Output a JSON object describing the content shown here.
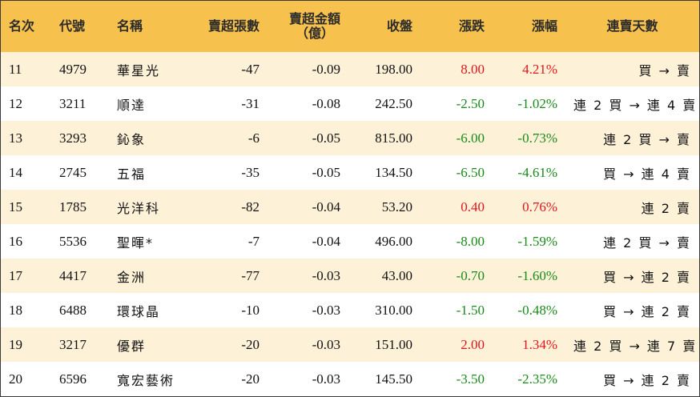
{
  "headers": {
    "rank": "名次",
    "code": "代號",
    "name": "名稱",
    "net_sell_lots": "賣超張數",
    "net_sell_amount_line1": "賣超金額",
    "net_sell_amount_line2": "（億）",
    "close": "收盤",
    "change": "漲跌",
    "change_pct": "漲幅",
    "consecutive_days": "連賣天數"
  },
  "rows": [
    {
      "rank": "11",
      "code": "4979",
      "name": "華星光",
      "lots": "-47",
      "amount": "-0.09",
      "close": "198.00",
      "change": "8.00",
      "pct": "4.21%",
      "trend": "up",
      "days": "買 → 賣"
    },
    {
      "rank": "12",
      "code": "3211",
      "name": "順達",
      "lots": "-31",
      "amount": "-0.08",
      "close": "242.50",
      "change": "-2.50",
      "pct": "-1.02%",
      "trend": "down",
      "days": "連 2 買 → 連 4 賣"
    },
    {
      "rank": "13",
      "code": "3293",
      "name": "鈊象",
      "lots": "-6",
      "amount": "-0.05",
      "close": "815.00",
      "change": "-6.00",
      "pct": "-0.73%",
      "trend": "down",
      "days": "連 2 買 → 賣"
    },
    {
      "rank": "14",
      "code": "2745",
      "name": "五福",
      "lots": "-35",
      "amount": "-0.05",
      "close": "134.50",
      "change": "-6.50",
      "pct": "-4.61%",
      "trend": "down",
      "days": "買 → 連 4 賣"
    },
    {
      "rank": "15",
      "code": "1785",
      "name": "光洋科",
      "lots": "-82",
      "amount": "-0.04",
      "close": "53.20",
      "change": "0.40",
      "pct": "0.76%",
      "trend": "up",
      "days": "連 2 賣"
    },
    {
      "rank": "16",
      "code": "5536",
      "name": "聖暉*",
      "lots": "-7",
      "amount": "-0.04",
      "close": "496.00",
      "change": "-8.00",
      "pct": "-1.59%",
      "trend": "down",
      "days": "連 2 買 → 賣"
    },
    {
      "rank": "17",
      "code": "4417",
      "name": "金洲",
      "lots": "-77",
      "amount": "-0.03",
      "close": "43.00",
      "change": "-0.70",
      "pct": "-1.60%",
      "trend": "down",
      "days": "買 → 連 2 賣"
    },
    {
      "rank": "18",
      "code": "6488",
      "name": "環球晶",
      "lots": "-10",
      "amount": "-0.03",
      "close": "310.00",
      "change": "-1.50",
      "pct": "-0.48%",
      "trend": "down",
      "days": "買 → 連 2 賣"
    },
    {
      "rank": "19",
      "code": "3217",
      "name": "優群",
      "lots": "-20",
      "amount": "-0.03",
      "close": "151.00",
      "change": "2.00",
      "pct": "1.34%",
      "trend": "up",
      "days": "連 2 買 → 連 7 賣"
    },
    {
      "rank": "20",
      "code": "6596",
      "name": "寬宏藝術",
      "lots": "-20",
      "amount": "-0.03",
      "close": "145.50",
      "change": "-3.50",
      "pct": "-2.35%",
      "trend": "down",
      "days": "買 → 連 2 賣"
    }
  ],
  "colors": {
    "header_bg": "#f7c14e",
    "odd_row_bg": "#fdf1d8",
    "even_row_bg": "#ffffff",
    "up": "#e0161b",
    "down": "#1a8a1a"
  }
}
